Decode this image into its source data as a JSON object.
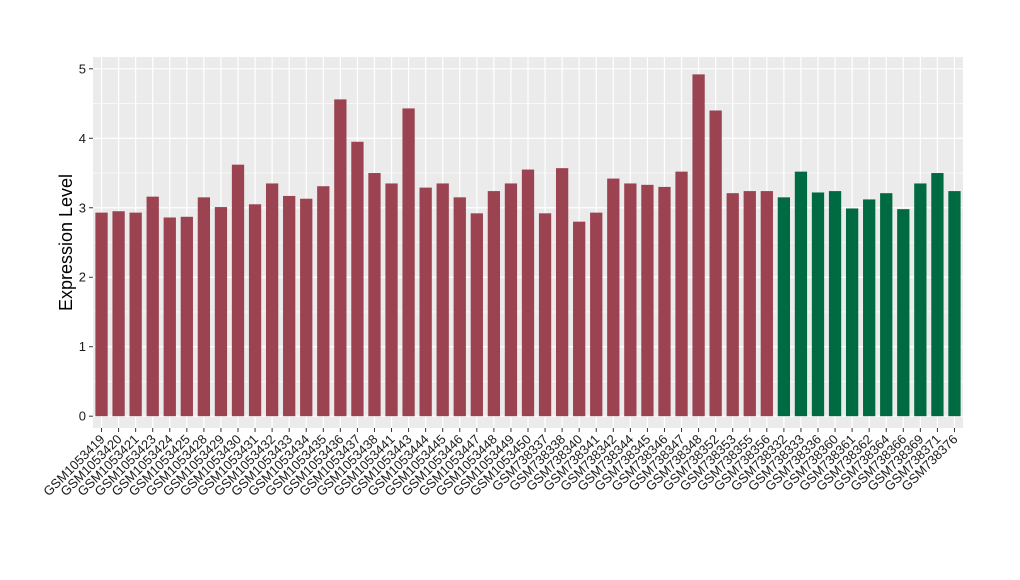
{
  "chart_data": {
    "type": "bar",
    "title": "",
    "xlabel": "",
    "ylabel": "Expression Level",
    "ylim": [
      -0.17,
      5.17
    ],
    "yticks": [
      0,
      1,
      2,
      3,
      4,
      5
    ],
    "grid": true,
    "legend": "none",
    "colors": {
      "panel_bg": "#ebebeb",
      "grid_major": "#ffffff",
      "group_a": "#9b4350",
      "group_b": "#006b43"
    },
    "categories": [
      "GSM1053419",
      "GSM1053420",
      "GSM1053421",
      "GSM1053423",
      "GSM1053424",
      "GSM1053425",
      "GSM1053428",
      "GSM1053429",
      "GSM1053430",
      "GSM1053431",
      "GSM1053432",
      "GSM1053433",
      "GSM1053434",
      "GSM1053435",
      "GSM1053436",
      "GSM1053437",
      "GSM1053438",
      "GSM1053441",
      "GSM1053443",
      "GSM1053444",
      "GSM1053445",
      "GSM1053446",
      "GSM1053447",
      "GSM1053448",
      "GSM1053449",
      "GSM1053450",
      "GSM738337",
      "GSM738338",
      "GSM738340",
      "GSM738341",
      "GSM738342",
      "GSM738344",
      "GSM738345",
      "GSM738346",
      "GSM738347",
      "GSM738348",
      "GSM738352",
      "GSM738353",
      "GSM738355",
      "GSM738356",
      "GSM738332",
      "GSM738333",
      "GSM738336",
      "GSM738360",
      "GSM738361",
      "GSM738362",
      "GSM738364",
      "GSM738366",
      "GSM738369",
      "GSM738371",
      "GSM738376"
    ],
    "values": [
      2.93,
      2.95,
      2.93,
      3.16,
      2.86,
      2.87,
      3.15,
      3.01,
      3.62,
      3.05,
      3.35,
      3.17,
      3.13,
      3.31,
      4.56,
      3.95,
      3.5,
      3.35,
      4.43,
      3.29,
      3.35,
      3.15,
      2.92,
      3.24,
      3.35,
      3.55,
      2.92,
      3.57,
      2.8,
      2.93,
      3.42,
      3.35,
      3.33,
      3.3,
      3.52,
      4.92,
      4.4,
      3.21,
      3.24,
      3.24,
      3.15,
      3.52,
      3.22,
      3.24,
      2.99,
      3.12,
      3.21,
      2.98,
      3.35,
      3.5,
      3.24
    ],
    "groups": [
      "a",
      "a",
      "a",
      "a",
      "a",
      "a",
      "a",
      "a",
      "a",
      "a",
      "a",
      "a",
      "a",
      "a",
      "a",
      "a",
      "a",
      "a",
      "a",
      "a",
      "a",
      "a",
      "a",
      "a",
      "a",
      "a",
      "a",
      "a",
      "a",
      "a",
      "a",
      "a",
      "a",
      "a",
      "a",
      "a",
      "a",
      "a",
      "a",
      "a",
      "b",
      "b",
      "b",
      "b",
      "b",
      "b",
      "b",
      "b",
      "b",
      "b",
      "b"
    ]
  }
}
